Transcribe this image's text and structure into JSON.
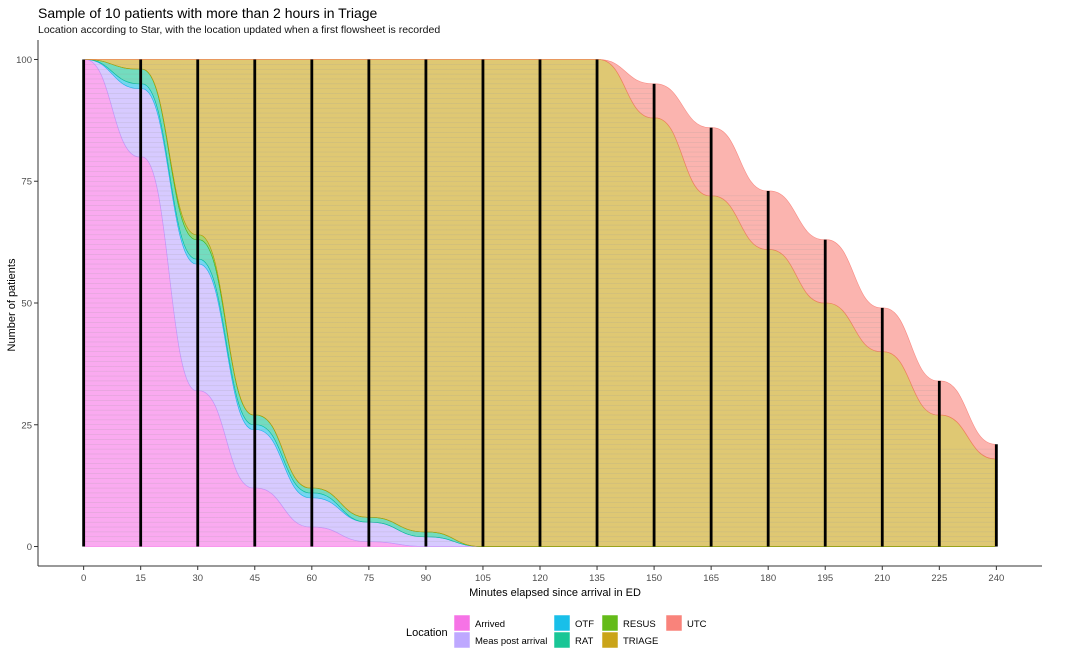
{
  "chart_data": {
    "type": "area",
    "title": "Sample of 10 patients with more than 2 hours in Triage",
    "subtitle": "Location according to Star, with the location updated when a first flowsheet is recorded",
    "xlabel": "Minutes elapsed since arrival in ED",
    "ylabel": "Number of patients",
    "x": [
      0,
      15,
      30,
      45,
      60,
      75,
      90,
      105,
      120,
      135,
      150,
      165,
      180,
      195,
      210,
      225,
      240
    ],
    "xlim": [
      -12,
      252
    ],
    "ylim": [
      -4,
      104
    ],
    "yticks": [
      0,
      25,
      50,
      75,
      100
    ],
    "grid": false,
    "legend_title": "Location",
    "legend_position": "bottom",
    "series": [
      {
        "name": "Arrived",
        "color": "#f564e3",
        "values": [
          100,
          80,
          32,
          12,
          4,
          1,
          0,
          0,
          0,
          0,
          0,
          0,
          0,
          0,
          0,
          0,
          0
        ]
      },
      {
        "name": "Meas post arrival",
        "color": "#b79fff",
        "values": [
          0,
          14,
          26,
          12,
          6,
          4,
          2,
          0,
          0,
          0,
          0,
          0,
          0,
          0,
          0,
          0,
          0
        ]
      },
      {
        "name": "OTF",
        "color": "#00b8e7",
        "values": [
          0,
          1,
          1,
          1,
          1,
          0,
          0,
          0,
          0,
          0,
          0,
          0,
          0,
          0,
          0,
          0,
          0
        ]
      },
      {
        "name": "RAT",
        "color": "#00c08b",
        "values": [
          0,
          3,
          4,
          2,
          1,
          1,
          1,
          0,
          0,
          0,
          0,
          0,
          0,
          0,
          0,
          0,
          0
        ]
      },
      {
        "name": "RESUS",
        "color": "#53b400",
        "values": [
          0,
          0,
          1,
          0,
          0,
          0,
          0,
          0,
          0,
          0,
          0,
          0,
          0,
          0,
          0,
          0,
          0
        ]
      },
      {
        "name": "TRIAGE",
        "color": "#c49a00",
        "values": [
          0,
          2,
          36,
          73,
          88,
          94,
          97,
          100,
          100,
          100,
          88,
          72,
          61,
          50,
          40,
          27,
          18
        ]
      },
      {
        "name": "UTC",
        "color": "#f8766d",
        "values": [
          0,
          0,
          0,
          0,
          0,
          0,
          0,
          0,
          0,
          0,
          7,
          14,
          12,
          13,
          9,
          7,
          3
        ]
      }
    ]
  }
}
